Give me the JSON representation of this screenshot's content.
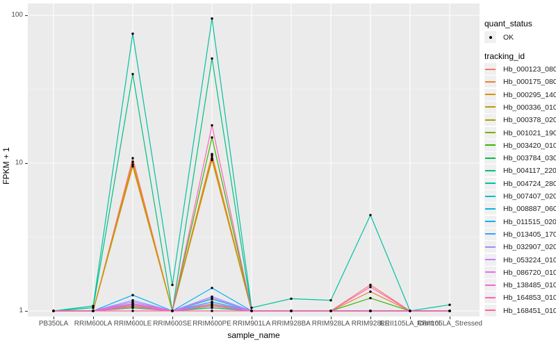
{
  "chart_data": {
    "type": "line",
    "title": "",
    "xlabel": "sample_name",
    "ylabel": "FPKM + 1",
    "yscale": "log10",
    "yticks": [
      1,
      10,
      100
    ],
    "ytick_labels": [
      "1",
      "10",
      "100"
    ],
    "minor_yticks": [
      3.162,
      31.62
    ],
    "ylim": [
      0.93,
      115
    ],
    "grid": true,
    "legend_position": "right",
    "panel_bg": "#EBEBEB",
    "grid_color": "#FFFFFF",
    "point_color": "#000000",
    "key_bg": "#F0F0F0",
    "categories": [
      "PB350LA",
      "RRIM600LA",
      "RRIM600LE",
      "RRIM600SE",
      "RRIM600PE",
      "RRIM901LA",
      "RRIM928BA",
      "RRIM928LA",
      "RRIM928LE",
      "RRII105LA_Control",
      "RRII105LA_Stressed"
    ],
    "legend": {
      "quant_title": "quant_status",
      "quant_items": [
        "OK"
      ],
      "tracking_title": "tracking_id"
    },
    "series": [
      {
        "name": "Hb_000123_080",
        "color": "#F8766D",
        "values": [
          1,
          1,
          10.8,
          1,
          11.5,
          1,
          1,
          1,
          1.5,
          1,
          1
        ]
      },
      {
        "name": "Hb_000175_080",
        "color": "#EA8331",
        "values": [
          1,
          1,
          10.2,
          1,
          11.2,
          1,
          1,
          1,
          1.35,
          1,
          1
        ]
      },
      {
        "name": "Hb_000295_140",
        "color": "#D89000",
        "values": [
          1,
          1,
          9.8,
          1,
          10.8,
          1,
          1,
          1,
          1,
          1,
          1
        ]
      },
      {
        "name": "Hb_000336_010",
        "color": "#C09B00",
        "values": [
          1,
          1,
          9.5,
          1,
          10.5,
          1,
          1,
          1,
          1,
          1,
          1
        ]
      },
      {
        "name": "Hb_000378_020",
        "color": "#A3A500",
        "values": [
          1,
          1,
          1.08,
          1,
          1.1,
          1,
          1,
          1,
          1,
          1,
          1
        ]
      },
      {
        "name": "Hb_001021_190",
        "color": "#7CAE00",
        "values": [
          1,
          1,
          1.05,
          1,
          1.08,
          1,
          1,
          1,
          1,
          1,
          1
        ]
      },
      {
        "name": "Hb_003420_010",
        "color": "#39B600",
        "values": [
          1,
          1,
          1.1,
          1,
          14.9,
          1,
          1,
          1,
          1.22,
          1,
          1
        ]
      },
      {
        "name": "Hb_003784_030",
        "color": "#00BB4E",
        "values": [
          1,
          1,
          1.05,
          1,
          1.05,
          1,
          1,
          1,
          1,
          1,
          1
        ]
      },
      {
        "name": "Hb_004117_220",
        "color": "#00BF7D",
        "values": [
          1,
          1.05,
          40,
          1,
          51,
          1,
          1,
          1,
          1,
          1,
          1
        ]
      },
      {
        "name": "Hb_004724_280",
        "color": "#00C1A3",
        "values": [
          1,
          1.08,
          75,
          1.5,
          95,
          1.05,
          1.21,
          1.18,
          4.45,
          1,
          1.1
        ]
      },
      {
        "name": "Hb_007407_020",
        "color": "#00BFC4",
        "values": [
          1,
          1,
          1.15,
          1,
          1.2,
          1,
          1,
          1,
          1,
          1,
          1
        ]
      },
      {
        "name": "Hb_008887_060",
        "color": "#00BAE0",
        "values": [
          1,
          1,
          1.1,
          1,
          1.15,
          1,
          1,
          1,
          1,
          1,
          1
        ]
      },
      {
        "name": "Hb_011515_020",
        "color": "#00B0F6",
        "values": [
          1,
          1,
          1.28,
          1,
          1.43,
          1,
          1,
          1,
          1,
          1,
          1
        ]
      },
      {
        "name": "Hb_013405_170",
        "color": "#35A2FF",
        "values": [
          1,
          1,
          1.12,
          1,
          1.15,
          1,
          1,
          1,
          1,
          1,
          1
        ]
      },
      {
        "name": "Hb_032907_020",
        "color": "#9590FF",
        "values": [
          1,
          1,
          1.18,
          1,
          1.25,
          1,
          1,
          1,
          1,
          1,
          1
        ]
      },
      {
        "name": "Hb_053224_010",
        "color": "#C77CFF",
        "values": [
          1,
          1,
          1.15,
          1,
          1.22,
          1,
          1,
          1,
          1,
          1,
          1
        ]
      },
      {
        "name": "Hb_086720_010",
        "color": "#E76BF3",
        "values": [
          1,
          1,
          1.1,
          1,
          1.12,
          1,
          1,
          1,
          1,
          1,
          1
        ]
      },
      {
        "name": "Hb_138485_010",
        "color": "#FA62DB",
        "values": [
          1,
          1,
          1.06,
          1,
          1.08,
          1,
          1,
          1,
          1,
          1,
          1
        ]
      },
      {
        "name": "Hb_164853_010",
        "color": "#FF62BC",
        "values": [
          1,
          1,
          1.12,
          1,
          18,
          1,
          1,
          1,
          1.45,
          1,
          1
        ]
      },
      {
        "name": "Hb_168451_010",
        "color": "#FF6598",
        "values": [
          1,
          1,
          1,
          1,
          1,
          1,
          1,
          1,
          1,
          1,
          1
        ]
      }
    ]
  }
}
